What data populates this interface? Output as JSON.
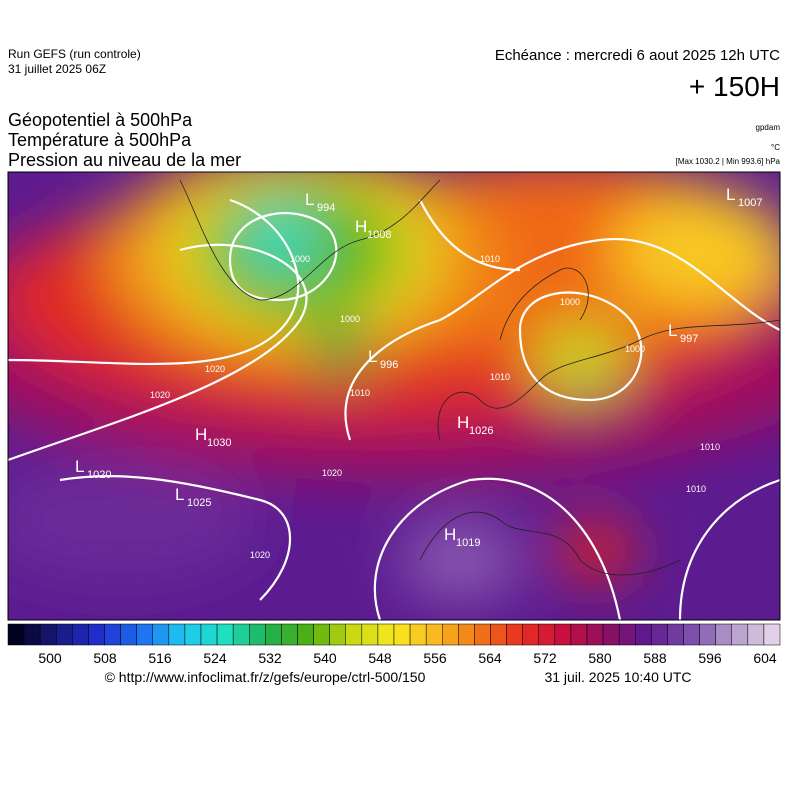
{
  "header": {
    "run": "Run GEFS (run controle)",
    "run_date": "31 juillet 2025 06Z",
    "valid": "Echéance : mercredi 6 aout 2025 12h UTC",
    "lead": "+ 150H",
    "fields": [
      "Géopotentiel à 500hPa",
      "Température à 500hPa",
      "Pression au niveau de la mer"
    ],
    "units": [
      "gpdam",
      "°C",
      "[Max 1030.2 | Min 993.6] hPa"
    ]
  },
  "map": {
    "centers": [
      {
        "symbol": "L",
        "value": "994"
      },
      {
        "symbol": "H",
        "value": "1008"
      },
      {
        "symbol": "L",
        "value": "996"
      },
      {
        "symbol": "H",
        "value": "1030"
      },
      {
        "symbol": "L",
        "value": "1020"
      },
      {
        "symbol": "L",
        "value": "1025"
      },
      {
        "symbol": "H",
        "value": "1026"
      },
      {
        "symbol": "H",
        "value": "1019"
      },
      {
        "symbol": "L",
        "value": "1007"
      },
      {
        "symbol": "L",
        "value": "997"
      }
    ],
    "isobar_labels": [
      "1020",
      "1010",
      "1000",
      "1000",
      "1020",
      "1020",
      "1010",
      "1000",
      "1010",
      "1010",
      "1010",
      "1000",
      "1020"
    ]
  },
  "colorbar": {
    "colors": [
      "#000020",
      "#1a1a80",
      "#2030d0",
      "#1f70f0",
      "#20c8f0",
      "#20e0c0",
      "#20b050",
      "#50b010",
      "#c8d810",
      "#f8e820",
      "#f8b820",
      "#f07818",
      "#e83020",
      "#c81040",
      "#901060",
      "#601890",
      "#7848a8",
      "#b098c8",
      "#e0d0e8"
    ],
    "ticks": [
      "500",
      "508",
      "516",
      "524",
      "532",
      "540",
      "548",
      "556",
      "564",
      "572",
      "580",
      "588",
      "596",
      "604"
    ]
  },
  "footer": {
    "url": "© http://www.infoclimat.fr/z/gefs/europe/ctrl-500/150",
    "stamp": "31 juil. 2025 10:40 UTC"
  }
}
